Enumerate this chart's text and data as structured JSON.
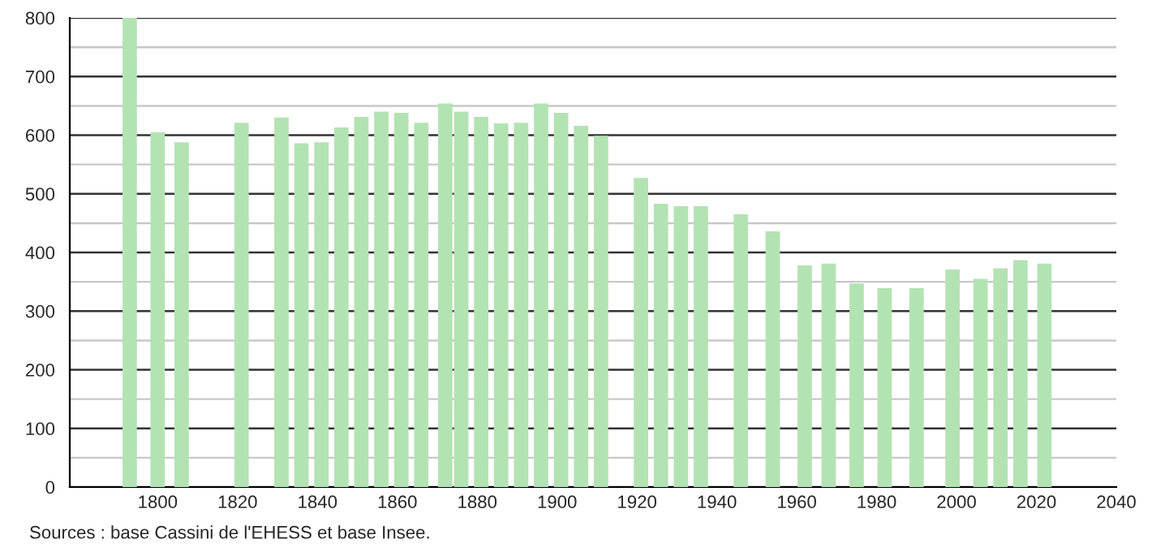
{
  "chart_data": {
    "type": "bar",
    "x": [
      1793,
      1800,
      1806,
      1821,
      1831,
      1836,
      1841,
      1846,
      1851,
      1856,
      1861,
      1866,
      1872,
      1876,
      1881,
      1886,
      1891,
      1896,
      1901,
      1906,
      1911,
      1921,
      1926,
      1931,
      1936,
      1946,
      1954,
      1962,
      1968,
      1975,
      1982,
      1990,
      1999,
      2006,
      2011,
      2016,
      2022
    ],
    "values": [
      800,
      605,
      588,
      621,
      630,
      586,
      588,
      613,
      631,
      640,
      638,
      621,
      654,
      640,
      631,
      620,
      621,
      654,
      638,
      616,
      599,
      527,
      483,
      479,
      479,
      465,
      436,
      378,
      381,
      347,
      339,
      339,
      371,
      355,
      373,
      387,
      381
    ],
    "color": "#b3e3b3",
    "xlim": [
      1778,
      2040
    ],
    "xticks": [
      1800,
      1820,
      1840,
      1860,
      1880,
      1900,
      1920,
      1940,
      1960,
      1980,
      2000,
      2020,
      2040
    ],
    "ylim": [
      0,
      800
    ],
    "yticks": [
      0,
      {
        "value": 50,
        "label": null
      },
      100,
      {
        "value": 150,
        "label": null
      },
      200,
      {
        "value": 250,
        "label": null
      },
      300,
      {
        "value": 350,
        "label": null
      },
      400,
      {
        "value": 450,
        "label": null
      },
      500,
      {
        "value": 550,
        "label": null
      },
      600,
      {
        "value": 650,
        "label": null
      },
      700,
      {
        "value": 750,
        "label": null
      },
      800
    ],
    "grid": "y",
    "annotations": [
      "Sources : base Cassini de l'EHESS et base Insee."
    ]
  }
}
